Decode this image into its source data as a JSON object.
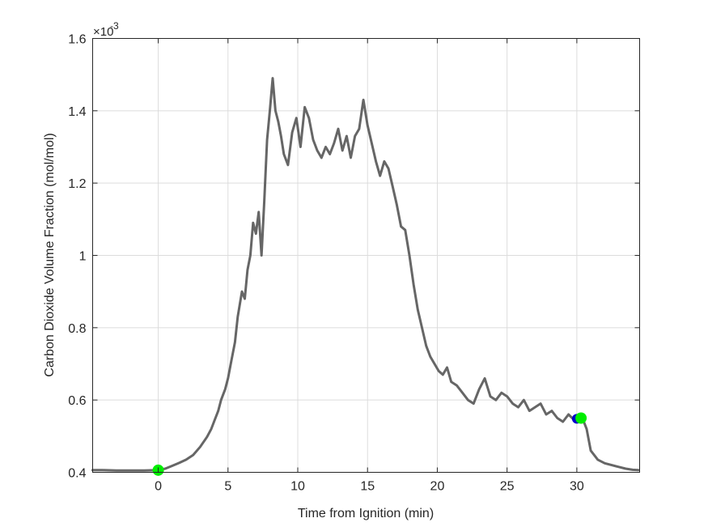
{
  "chart_data": {
    "type": "line",
    "title": "",
    "xlabel": "Time from Ignition (min)",
    "ylabel": "Carbon Dioxide Volume Fraction (mol/mol)",
    "y_exponent_label": "×10",
    "y_exponent": "-3",
    "xlim": [
      -4.7,
      34.5
    ],
    "ylim": [
      0.4,
      1.6
    ],
    "x_ticks": [
      0,
      5,
      10,
      15,
      20,
      25,
      30
    ],
    "x_tick_labels": [
      "0",
      "5",
      "10",
      "15",
      "20",
      "25",
      "30"
    ],
    "y_ticks": [
      0.4,
      0.6,
      0.8,
      1.0,
      1.2,
      1.4,
      1.6
    ],
    "y_tick_labels": [
      "0.4",
      "0.6",
      "0.8",
      "1",
      "1.2",
      "1.4",
      "1.6"
    ],
    "grid": true,
    "colors": {
      "series": "#666666",
      "marker_start": "#00ee00",
      "marker_end": "#00ee00",
      "marker_end_inner": "#0000cc"
    },
    "series": [
      {
        "x": [
          -4.7,
          -4.0,
          -3.0,
          -2.0,
          -1.0,
          0.0,
          0.5,
          1.0,
          1.5,
          2.0,
          2.5,
          3.0,
          3.5,
          3.8,
          4.0,
          4.3,
          4.5,
          4.8,
          5.0,
          5.2,
          5.5,
          5.7,
          6.0,
          6.2,
          6.4,
          6.6,
          6.8,
          7.0,
          7.2,
          7.4,
          7.6,
          7.8,
          8.0,
          8.2,
          8.4,
          8.6,
          8.8,
          9.0,
          9.3,
          9.6,
          9.9,
          10.2,
          10.5,
          10.8,
          11.1,
          11.4,
          11.7,
          12.0,
          12.3,
          12.6,
          12.9,
          13.2,
          13.5,
          13.8,
          14.1,
          14.4,
          14.7,
          15.0,
          15.3,
          15.6,
          15.9,
          16.2,
          16.5,
          16.8,
          17.1,
          17.4,
          17.7,
          18.0,
          18.3,
          18.6,
          18.9,
          19.2,
          19.5,
          19.8,
          20.1,
          20.4,
          20.7,
          21.0,
          21.4,
          21.8,
          22.2,
          22.6,
          23.0,
          23.4,
          23.8,
          24.2,
          24.6,
          25.0,
          25.4,
          25.8,
          26.2,
          26.6,
          27.0,
          27.4,
          27.8,
          28.2,
          28.6,
          29.0,
          29.4,
          29.8,
          30.1,
          30.4,
          30.7,
          31.0,
          31.5,
          32.0,
          32.5,
          33.0,
          33.5,
          34.0,
          34.4
        ],
        "values": [
          0.406,
          0.406,
          0.405,
          0.405,
          0.405,
          0.406,
          0.41,
          0.418,
          0.426,
          0.435,
          0.448,
          0.47,
          0.498,
          0.52,
          0.54,
          0.57,
          0.6,
          0.63,
          0.66,
          0.7,
          0.76,
          0.83,
          0.9,
          0.88,
          0.96,
          1.0,
          1.09,
          1.06,
          1.12,
          1.0,
          1.15,
          1.32,
          1.4,
          1.49,
          1.4,
          1.37,
          1.33,
          1.28,
          1.25,
          1.34,
          1.38,
          1.3,
          1.41,
          1.38,
          1.32,
          1.29,
          1.27,
          1.3,
          1.28,
          1.31,
          1.35,
          1.29,
          1.33,
          1.27,
          1.33,
          1.35,
          1.43,
          1.36,
          1.31,
          1.26,
          1.22,
          1.26,
          1.24,
          1.19,
          1.14,
          1.08,
          1.07,
          1.0,
          0.92,
          0.85,
          0.8,
          0.75,
          0.72,
          0.7,
          0.68,
          0.67,
          0.69,
          0.65,
          0.64,
          0.62,
          0.6,
          0.59,
          0.63,
          0.66,
          0.61,
          0.6,
          0.62,
          0.61,
          0.59,
          0.58,
          0.6,
          0.57,
          0.58,
          0.59,
          0.56,
          0.57,
          0.55,
          0.54,
          0.56,
          0.545,
          0.548,
          0.55,
          0.52,
          0.46,
          0.435,
          0.425,
          0.42,
          0.415,
          0.41,
          0.407,
          0.406
        ]
      }
    ],
    "markers": [
      {
        "x": 0.0,
        "y": 0.406,
        "color": "#00ee00"
      },
      {
        "x": 30.0,
        "y": 0.548,
        "color": "#0000cc",
        "size": "small"
      },
      {
        "x": 30.3,
        "y": 0.55,
        "color": "#00ee00"
      }
    ]
  }
}
